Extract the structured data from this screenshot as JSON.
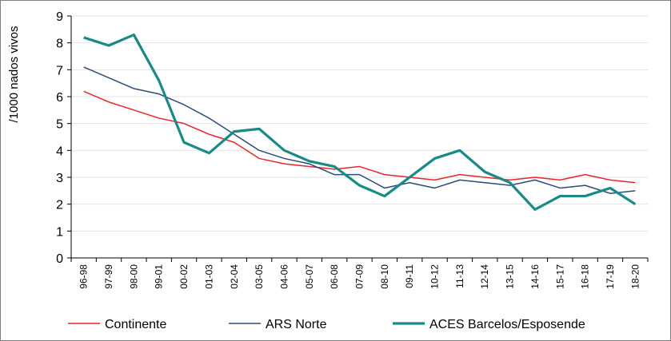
{
  "chart_data": {
    "type": "line",
    "title": "",
    "xlabel": "",
    "ylabel": "/1000 nados vivos",
    "ylim": [
      0,
      9
    ],
    "yticks": [
      0,
      1,
      2,
      3,
      4,
      5,
      6,
      7,
      8,
      9
    ],
    "grid": true,
    "legend_position": "bottom",
    "categories": [
      "96-98",
      "97-99",
      "98-00",
      "99-01",
      "00-02",
      "01-03",
      "02-04",
      "03-05",
      "04-06",
      "05-07",
      "06-08",
      "07-09",
      "08-10",
      "09-11",
      "10-12",
      "11-13",
      "12-14",
      "13-15",
      "14-16",
      "15-17",
      "16-18",
      "17-19",
      "18-20"
    ],
    "series": [
      {
        "name": "Continente",
        "color": "#e8262b",
        "values": [
          6.2,
          5.8,
          5.5,
          5.2,
          5.0,
          4.6,
          4.3,
          3.7,
          3.5,
          3.4,
          3.3,
          3.4,
          3.1,
          3.0,
          2.9,
          3.1,
          3.0,
          2.9,
          3.0,
          2.9,
          3.1,
          2.9,
          2.8
        ]
      },
      {
        "name": "ARS Norte",
        "color": "#2e4a7a",
        "values": [
          7.1,
          6.7,
          6.3,
          6.1,
          5.7,
          5.2,
          4.6,
          4.0,
          3.7,
          3.5,
          3.1,
          3.1,
          2.6,
          2.8,
          2.6,
          2.9,
          2.8,
          2.7,
          2.9,
          2.6,
          2.7,
          2.4,
          2.5
        ]
      },
      {
        "name": "ACES Barcelos/Esposende",
        "color": "#1a8a87",
        "values": [
          8.2,
          7.9,
          8.3,
          6.6,
          4.3,
          3.9,
          4.7,
          4.8,
          4.0,
          3.6,
          3.4,
          2.7,
          2.3,
          3.0,
          3.7,
          4.0,
          3.2,
          2.8,
          1.8,
          2.3,
          2.3,
          2.6,
          2.0
        ]
      }
    ]
  }
}
